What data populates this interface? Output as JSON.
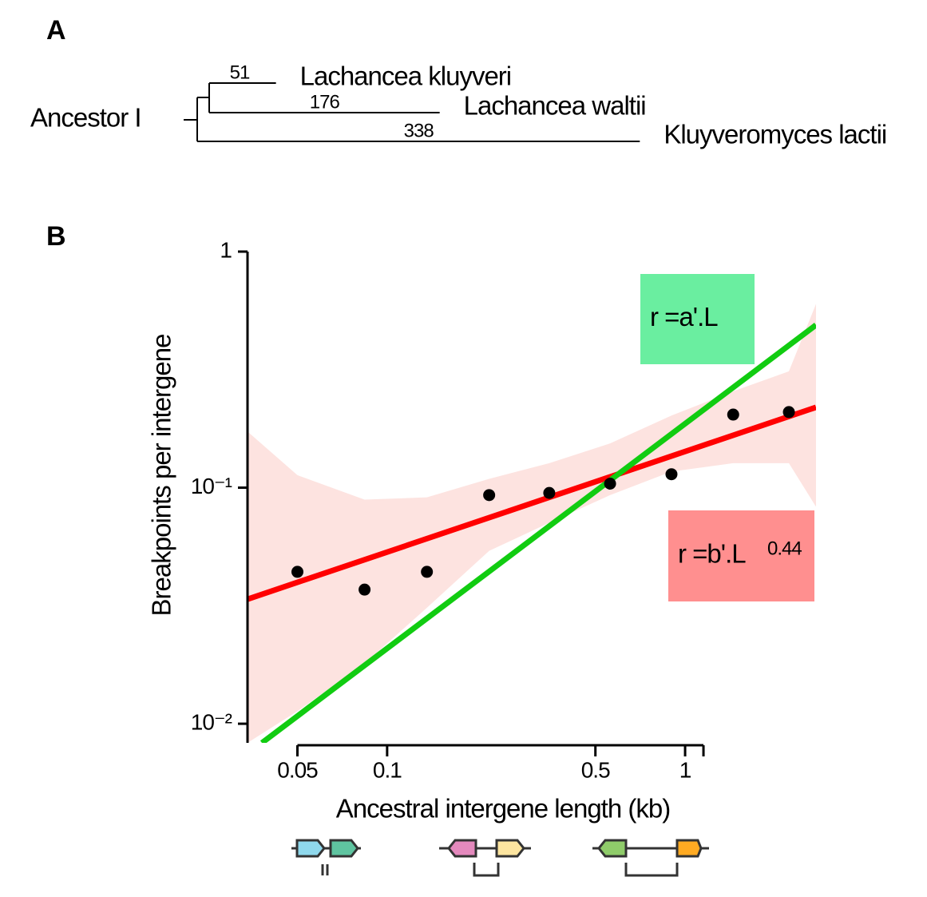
{
  "panel_a": {
    "label": "A",
    "tree": {
      "root_label": "Ancestor I",
      "leaves": [
        {
          "name": "Lachancea kluyveri",
          "length": 51
        },
        {
          "name": "Lachancea waltii",
          "length": 176
        },
        {
          "name": "Kluyveromyces lactii",
          "length": 338
        }
      ]
    }
  },
  "panel_b": {
    "label": "B"
  },
  "chart_data": {
    "type": "scatter",
    "x_label": "Ancestral intergene length (kb)",
    "y_label": "Breakpoints per intergene",
    "xscale": "log",
    "yscale": "log",
    "xlim": [
      0.034,
      2.75
    ],
    "ylim": [
      0.0083,
      1
    ],
    "xticks": [
      0.05,
      0.1,
      0.5,
      1
    ],
    "yticks": [
      1,
      {
        "value": 0.1,
        "label": "10⁻¹"
      },
      {
        "value": 0.01,
        "label": "10⁻²"
      }
    ],
    "series": [
      {
        "type": "band",
        "color": "#fde3e0",
        "x": [
          0.034,
          0.05,
          0.084,
          0.136,
          0.22,
          0.35,
          0.56,
          0.9,
          1.45,
          2.23,
          2.75
        ],
        "upper": [
          0.173,
          0.113,
          0.089,
          0.091,
          0.109,
          0.127,
          0.154,
          0.202,
          0.256,
          0.311,
          0.6
        ],
        "lower": [
          0.0083,
          0.0113,
          0.018,
          0.031,
          0.054,
          0.071,
          0.093,
          0.117,
          0.127,
          0.127,
          0.083
        ]
      },
      {
        "type": "line",
        "color": "#ff0000",
        "x": [
          0.034,
          2.75
        ],
        "values": [
          0.0337,
          0.219
        ]
      },
      {
        "type": "line",
        "color": "#11cc11",
        "x": [
          0.038,
          2.75
        ],
        "values": [
          0.0083,
          0.489
        ]
      },
      {
        "type": "scatter",
        "color": "#000000",
        "x": [
          0.05,
          0.084,
          0.136,
          0.22,
          0.35,
          0.56,
          0.9,
          1.45,
          2.23
        ],
        "values": [
          0.044,
          0.037,
          0.044,
          0.093,
          0.095,
          0.104,
          0.114,
          0.204,
          0.209
        ]
      }
    ],
    "annotations": [
      {
        "text": "r =a'.L",
        "color": "#6aeea0"
      },
      {
        "text": "r =b'.L",
        "exponent": 0.44,
        "color": "#ff8f8f"
      }
    ]
  }
}
